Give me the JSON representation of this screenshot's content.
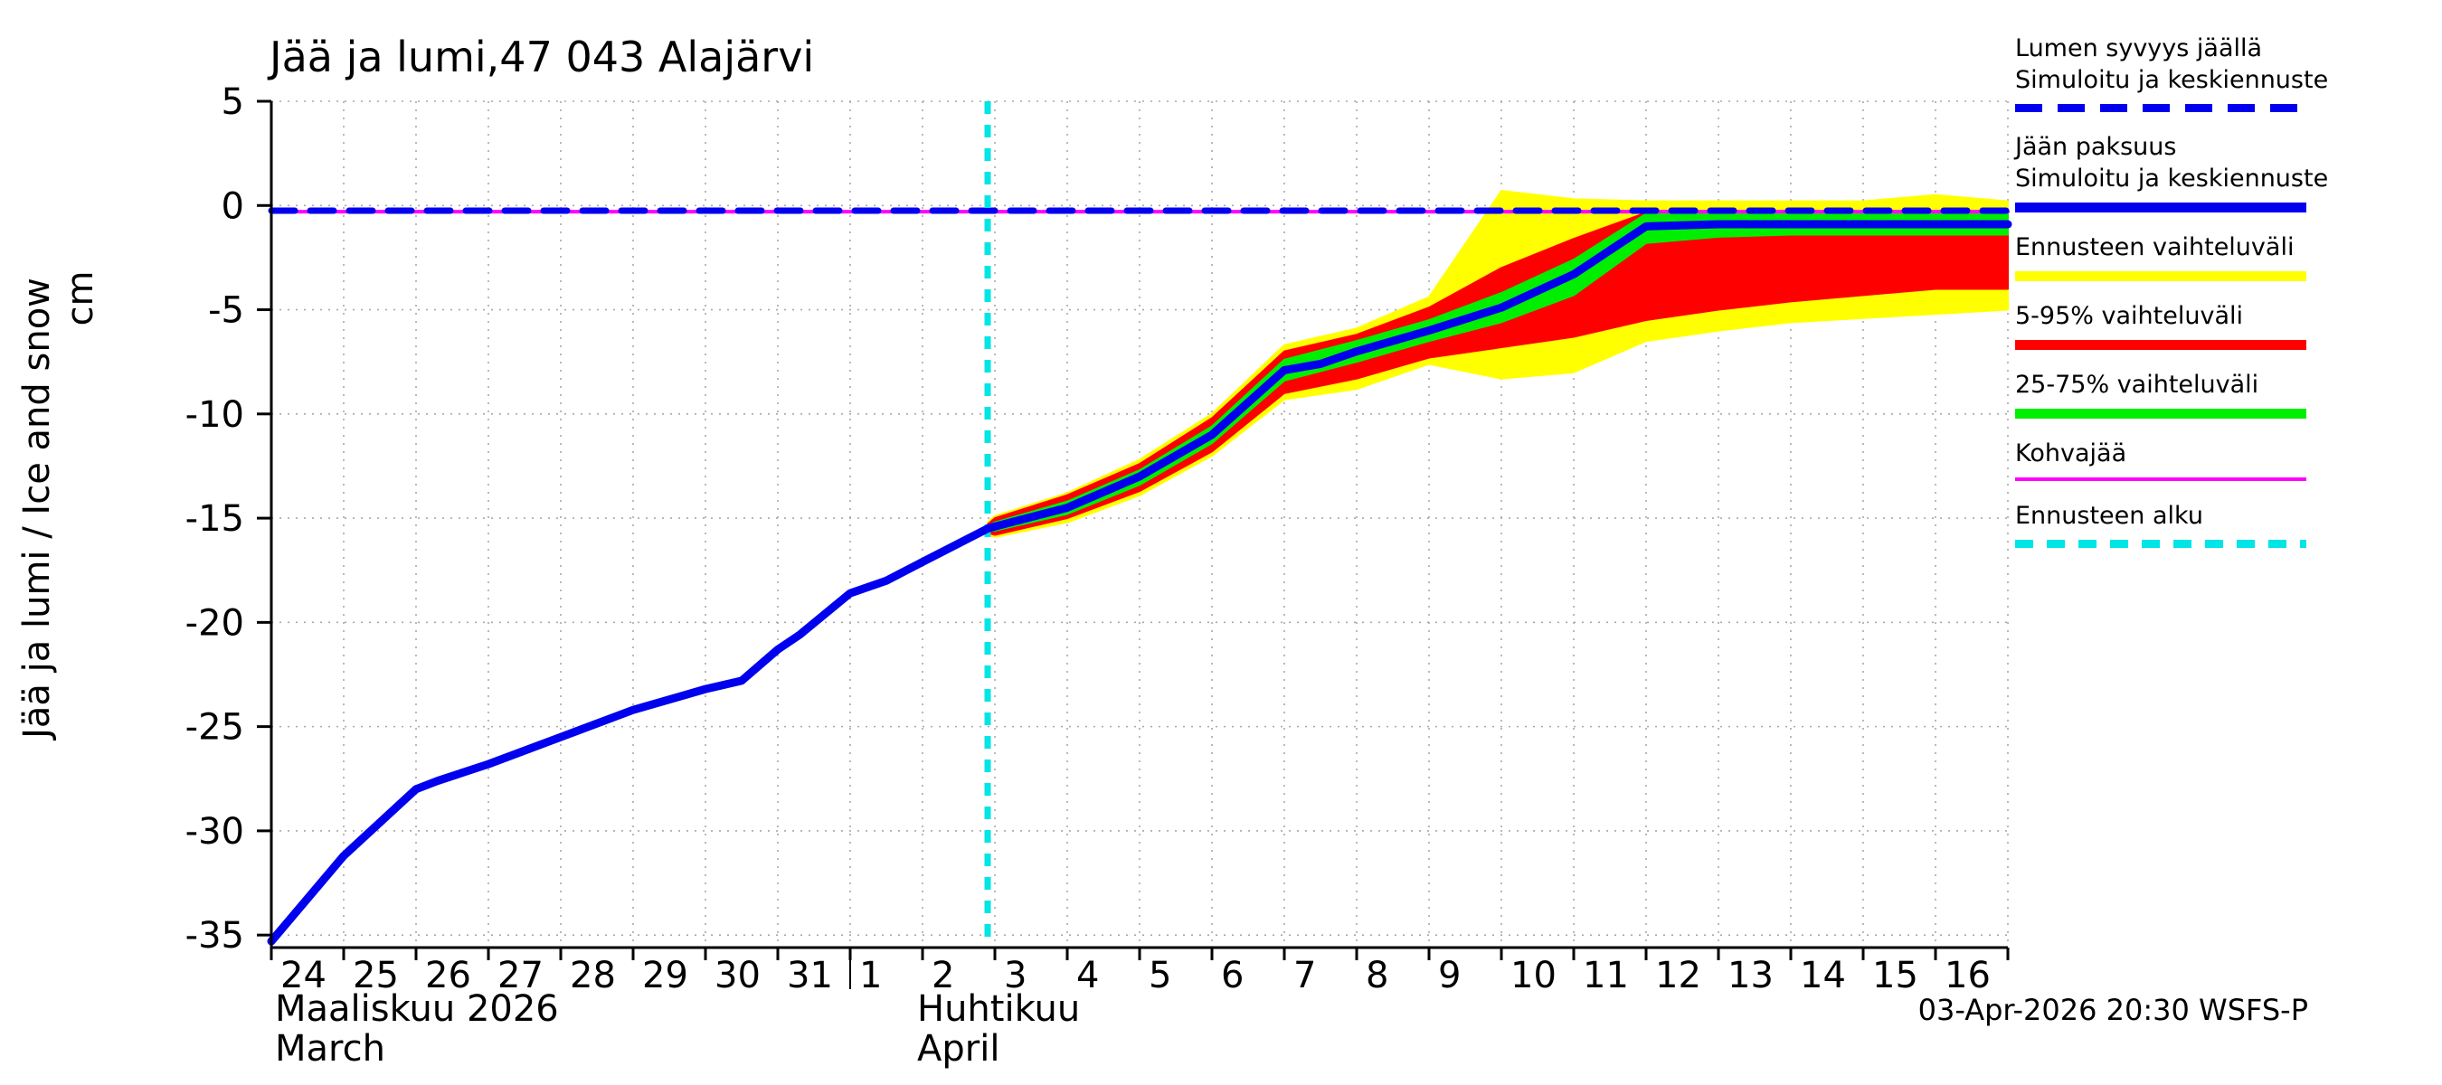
{
  "title": "Jää ja lumi,47 043 Alajärvi",
  "footer": "03-Apr-2026 20:30 WSFS-P",
  "y_axis": {
    "unit": "cm",
    "label": "Jää ja lumi / Ice and snow",
    "ticks": [
      5,
      0,
      -5,
      -10,
      -15,
      -20,
      -25,
      -30,
      -35
    ]
  },
  "x_axis": {
    "month1_label": "Maaliskuu 2026",
    "month1_label_en": "March",
    "month2_label": "Huhtikuu",
    "month2_label_en": "April",
    "march_days": [
      "24",
      "25",
      "26",
      "27",
      "28",
      "29",
      "30",
      "31"
    ],
    "april_days": [
      "1",
      "2",
      "3",
      "4",
      "5",
      "6",
      "7",
      "8",
      "9",
      "10",
      "11",
      "12",
      "13",
      "14",
      "15",
      "16"
    ]
  },
  "colors": {
    "simulation": "#0000ee",
    "range_full": "#ffff00",
    "range_5_95": "#ff0000",
    "range_25_75": "#00ee00",
    "kohvajaa": "#ff00ff",
    "forecast_start": "#00e5e5",
    "grid": "#a8a8a8",
    "axis": "#000000"
  },
  "legend": {
    "items": [
      {
        "label_lines": [
          "Lumen syvyys jäällä",
          "Simuloitu ja keskiennuste"
        ],
        "color": "#0000ee",
        "style": "dashed",
        "weight": 9,
        "dash": 30,
        "gap": 17
      },
      {
        "label_lines": [
          "Jään paksuus",
          "Simuloitu ja keskiennuste"
        ],
        "color": "#0000ee",
        "style": "solid",
        "weight": 11
      },
      {
        "label_lines": [
          "Ennusteen vaihteluväli"
        ],
        "color": "#ffff00",
        "style": "solid",
        "weight": 11
      },
      {
        "label_lines": [
          "5-95% vaihteluväli"
        ],
        "color": "#ff0000",
        "style": "solid",
        "weight": 11
      },
      {
        "label_lines": [
          "25-75% vaihteluväli"
        ],
        "color": "#00ee00",
        "style": "solid",
        "weight": 11
      },
      {
        "label_lines": [
          "Kohvajää"
        ],
        "color": "#ff00ff",
        "style": "solid",
        "weight": 4
      },
      {
        "label_lines": [
          "Ennusteen alku"
        ],
        "color": "#00e5e5",
        "style": "dashed",
        "weight": 9,
        "dash": 20,
        "gap": 15
      }
    ]
  },
  "chart_data": {
    "type": "line",
    "title": "Jää ja lumi,47 043 Alajärvi",
    "ylabel": "Jää ja lumi / Ice and snow (cm)",
    "x_description": "day index: 0 = 24 Maaliskuu/March 2026, 1 unit = 1 day, 8 = 1 Huhtikuu/April",
    "xlim": [
      0,
      24
    ],
    "ylim": [
      -35.6,
      5
    ],
    "grid": true,
    "forecast_start_x": 9.9,
    "ice_thickness_sim": {
      "x": [
        0,
        1,
        2,
        2.3,
        3,
        4,
        5,
        6,
        6.5,
        7,
        7.3,
        8,
        8.5,
        9,
        9.9
      ],
      "y": [
        -35.3,
        -31.2,
        -28.0,
        -27.6,
        -26.8,
        -25.5,
        -24.2,
        -23.2,
        -22.8,
        -21.3,
        -20.6,
        -18.6,
        -18.0,
        -17.1,
        -15.5
      ]
    },
    "ice_thickness_forecast_median": {
      "x": [
        9.9,
        10,
        11,
        12,
        13,
        14,
        14.5,
        15,
        16,
        17,
        18,
        19,
        20,
        21,
        22,
        23,
        24
      ],
      "y": [
        -15.5,
        -15.4,
        -14.5,
        -13.0,
        -11.0,
        -7.9,
        -7.6,
        -7.0,
        -6.0,
        -4.9,
        -3.3,
        -1.0,
        -0.9,
        -0.9,
        -0.9,
        -0.9,
        -0.9
      ]
    },
    "snow_depth_on_ice": {
      "x": [
        0,
        24
      ],
      "y": [
        -0.25,
        -0.25
      ]
    },
    "kohvajaa": {
      "x": [
        0,
        24
      ],
      "y": [
        -0.3,
        -0.3
      ]
    },
    "band_full": {
      "x": [
        9.9,
        10,
        11,
        12,
        13,
        14,
        15,
        16,
        17,
        18,
        19,
        20,
        21,
        22,
        23,
        24
      ],
      "lo": [
        -15.8,
        -15.9,
        -15.2,
        -13.9,
        -12.0,
        -9.3,
        -8.8,
        -7.6,
        -8.3,
        -8.0,
        -6.5,
        -6.0,
        -5.6,
        -5.4,
        -5.2,
        -5.0
      ],
      "hi": [
        -15.2,
        -14.9,
        -13.8,
        -12.2,
        -10.0,
        -6.7,
        -5.9,
        -4.4,
        0.7,
        0.3,
        0.2,
        0.2,
        0.2,
        0.2,
        0.5,
        0.2
      ]
    },
    "band_5_95": {
      "x": [
        9.9,
        10,
        11,
        12,
        13,
        14,
        15,
        16,
        17,
        18,
        19,
        20,
        21,
        22,
        23,
        24
      ],
      "lo": [
        -15.7,
        -15.8,
        -15.0,
        -13.7,
        -11.8,
        -9.0,
        -8.3,
        -7.3,
        -6.8,
        -6.3,
        -5.5,
        -5.0,
        -4.6,
        -4.3,
        -4.0,
        -4.0
      ],
      "hi": [
        -15.3,
        -15.0,
        -13.9,
        -12.4,
        -10.2,
        -7.0,
        -6.2,
        -4.9,
        -3.0,
        -1.6,
        -0.35,
        -0.35,
        -0.35,
        -0.35,
        -0.35,
        -0.35
      ]
    },
    "band_25_75": {
      "x": [
        9.9,
        10,
        11,
        12,
        13,
        14,
        15,
        16,
        17,
        18,
        19,
        20,
        21,
        22,
        23,
        24
      ],
      "lo": [
        -15.6,
        -15.6,
        -14.8,
        -13.4,
        -11.4,
        -8.4,
        -7.5,
        -6.5,
        -5.6,
        -4.3,
        -1.8,
        -1.5,
        -1.4,
        -1.4,
        -1.4,
        -1.4
      ],
      "hi": [
        -15.4,
        -15.2,
        -14.2,
        -12.7,
        -10.6,
        -7.4,
        -6.5,
        -5.5,
        -4.2,
        -2.6,
        -0.4,
        -0.4,
        -0.4,
        -0.4,
        -0.4,
        -0.4
      ]
    }
  }
}
